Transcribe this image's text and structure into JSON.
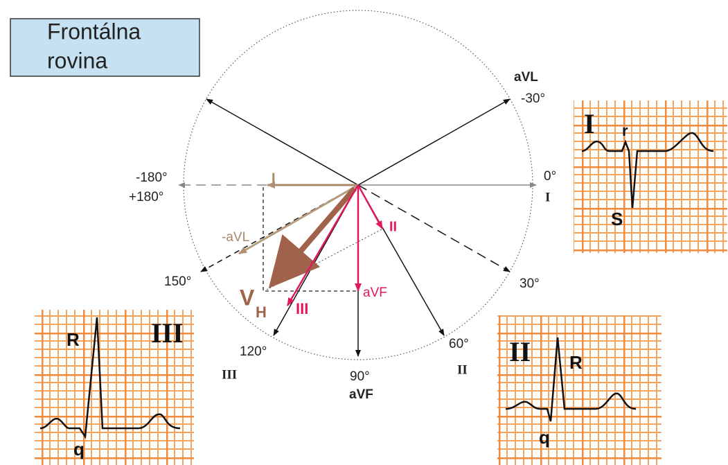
{
  "header": {
    "title_lines": [
      "Frontálna",
      "rovina"
    ]
  },
  "axis_labels": {
    "avl": "aVL",
    "minus30": "-30°",
    "zero": "0°",
    "lead_i": "I",
    "minus180": "-180°",
    "plus180": "+180°",
    "deg150": "150°",
    "deg30": "30°",
    "deg120": "120°",
    "lead_iii": "III",
    "deg90": "90°",
    "avf": "aVF",
    "deg60": "60°",
    "lead_ii": "II"
  },
  "vectors": {
    "i_projection": "I",
    "minus_avl": "-aVL",
    "vh_main": "V",
    "vh_sub": "H",
    "iii": "III",
    "avf": "aVF",
    "ii": "II"
  },
  "ecg_panels": [
    {
      "lead": "I",
      "waves": [
        "r",
        "S"
      ]
    },
    {
      "lead": "III",
      "waves": [
        "R",
        "q"
      ]
    },
    {
      "lead": "II",
      "waves": [
        "R",
        "q"
      ]
    }
  ]
}
